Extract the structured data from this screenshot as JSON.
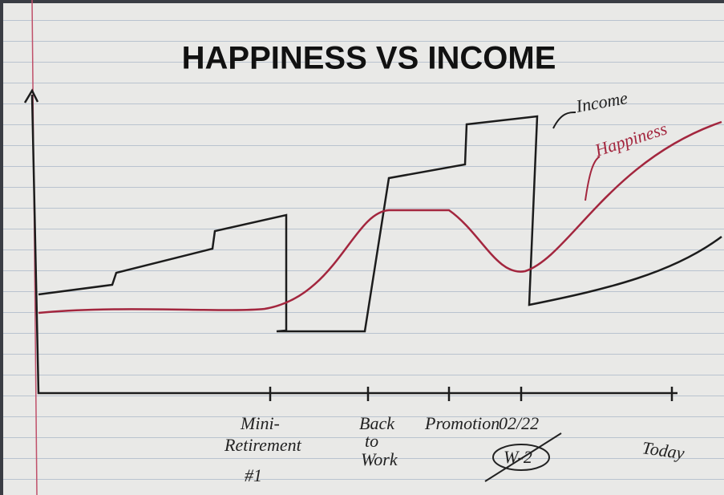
{
  "header": {
    "title": "HAPPINESS VS INCOME"
  },
  "lines": [
    {
      "label": "Income"
    },
    {
      "label": "Happiness"
    }
  ],
  "x_labels": [
    {
      "lines": [
        "Mini-",
        "Retirement",
        "#1"
      ]
    },
    {
      "lines": [
        "Back",
        "to",
        "Work"
      ]
    },
    {
      "lines": [
        "Promotion"
      ]
    },
    {
      "lines": [
        "02/22"
      ],
      "note": "W-2"
    },
    {
      "lines": [
        "Today"
      ]
    }
  ]
}
